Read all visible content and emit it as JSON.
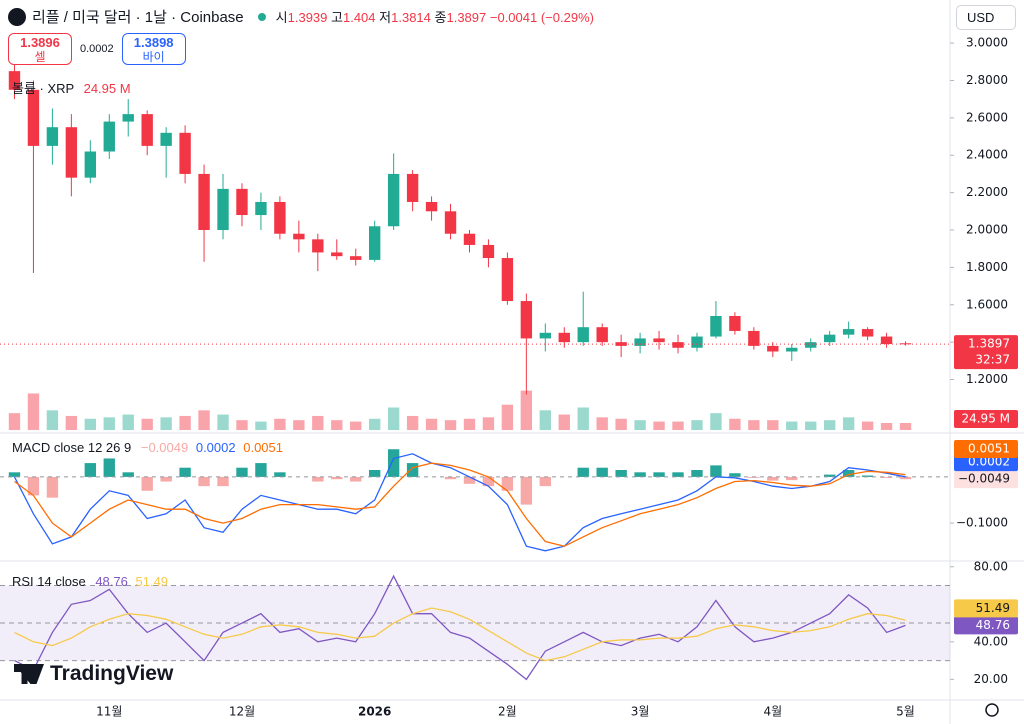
{
  "header": {
    "symbol": "리플 / 미국 달러 · 1날 · Coinbase",
    "open_label": "시",
    "high_label": "고",
    "low_label": "저",
    "close_label": "종",
    "change": "−0.0041 (−0.29%)",
    "currency": "USD",
    "sell_price": "1.3896",
    "sell_label": "셀",
    "spread": "0.0002",
    "buy_price": "1.3898",
    "buy_label": "바이",
    "countdown": "32:37",
    "logo": "TradingView"
  },
  "chart_data": [
    {
      "type": "candlestick",
      "categories": [
        null,
        null,
        null,
        null,
        null,
        "11월",
        null,
        null,
        null,
        null,
        null,
        null,
        "12월",
        null,
        null,
        null,
        null,
        null,
        null,
        "2026",
        null,
        null,
        null,
        null,
        null,
        null,
        "2월",
        null,
        null,
        null,
        null,
        null,
        null,
        "3월",
        null,
        null,
        null,
        null,
        null,
        null,
        "4월",
        null,
        null,
        null,
        null,
        null,
        null,
        "5월"
      ],
      "open": [
        2.85,
        2.75,
        2.45,
        2.55,
        2.28,
        2.42,
        2.58,
        2.62,
        2.45,
        2.52,
        2.3,
        2.0,
        2.22,
        2.08,
        2.15,
        1.98,
        1.95,
        1.88,
        1.86,
        1.84,
        2.02,
        2.3,
        2.15,
        2.1,
        1.98,
        1.92,
        1.85,
        1.62,
        1.42,
        1.45,
        1.4,
        1.48,
        1.4,
        1.38,
        1.42,
        1.4,
        1.37,
        1.43,
        1.54,
        1.46,
        1.38,
        1.35,
        1.37,
        1.4,
        1.44,
        1.47,
        1.43,
        1.3939
      ],
      "high": [
        2.98,
        2.8,
        2.65,
        2.62,
        2.48,
        2.62,
        2.7,
        2.64,
        2.55,
        2.56,
        2.35,
        2.3,
        2.25,
        2.2,
        2.18,
        2.05,
        1.98,
        1.95,
        1.9,
        2.05,
        2.41,
        2.32,
        2.18,
        2.14,
        2.0,
        1.95,
        1.88,
        1.66,
        1.5,
        1.48,
        1.67,
        1.5,
        1.44,
        1.45,
        1.46,
        1.44,
        1.45,
        1.62,
        1.56,
        1.48,
        1.4,
        1.39,
        1.42,
        1.46,
        1.51,
        1.48,
        1.45,
        1.404
      ],
      "low": [
        2.7,
        1.77,
        2.35,
        2.18,
        2.25,
        2.38,
        2.5,
        2.4,
        2.28,
        2.25,
        1.83,
        1.95,
        2.02,
        2.0,
        1.95,
        1.88,
        1.78,
        1.84,
        1.81,
        1.83,
        2.0,
        2.1,
        2.05,
        1.95,
        1.88,
        1.8,
        1.6,
        1.12,
        1.35,
        1.37,
        1.38,
        1.38,
        1.32,
        1.34,
        1.36,
        1.34,
        1.35,
        1.42,
        1.44,
        1.36,
        1.32,
        1.3,
        1.35,
        1.38,
        1.42,
        1.41,
        1.37,
        1.3814
      ],
      "close": [
        2.75,
        2.45,
        2.55,
        2.28,
        2.42,
        2.58,
        2.62,
        2.45,
        2.52,
        2.3,
        2.0,
        2.22,
        2.08,
        2.15,
        1.98,
        1.95,
        1.88,
        1.86,
        1.84,
        2.02,
        2.3,
        2.15,
        2.1,
        1.98,
        1.92,
        1.85,
        1.62,
        1.42,
        1.45,
        1.4,
        1.48,
        1.4,
        1.38,
        1.42,
        1.4,
        1.37,
        1.43,
        1.54,
        1.46,
        1.38,
        1.35,
        1.37,
        1.4,
        1.44,
        1.47,
        1.43,
        1.39,
        1.3897
      ],
      "up_color": "#22ab94",
      "down_color": "#f23645",
      "ylim": [
        0.93,
        3.07
      ],
      "yticks": [
        {
          "value": 3.0,
          "label": "3.0000"
        },
        {
          "value": 2.8,
          "label": "2.8000"
        },
        {
          "value": 2.6,
          "label": "2.6000"
        },
        {
          "value": 2.4,
          "label": "2.4000"
        },
        {
          "value": 2.2,
          "label": "2.2000"
        },
        {
          "value": 2.0,
          "label": "2.0000"
        },
        {
          "value": 1.8,
          "label": "1.8000"
        },
        {
          "value": 1.6,
          "label": "1.6000"
        },
        {
          "value": 1.4,
          "label": "1.4000"
        },
        {
          "value": 1.2,
          "label": "1.2000"
        }
      ],
      "grid": false
    },
    {
      "type": "bar",
      "name": "볼륨 · XRP",
      "values": [
        60,
        130,
        70,
        50,
        40,
        45,
        55,
        40,
        45,
        50,
        70,
        55,
        35,
        30,
        40,
        35,
        50,
        35,
        30,
        40,
        80,
        50,
        40,
        35,
        40,
        45,
        90,
        140,
        70,
        55,
        80,
        45,
        40,
        35,
        30,
        30,
        35,
        60,
        40,
        35,
        35,
        30,
        30,
        35,
        45,
        30,
        25,
        24.95
      ],
      "value_labels": [
        null,
        null,
        null,
        null,
        null,
        null,
        null,
        null,
        null,
        null,
        null,
        null,
        null,
        null,
        null,
        null,
        null,
        null,
        null,
        null,
        null,
        null,
        null,
        null,
        null,
        null,
        null,
        null,
        null,
        null,
        null,
        null,
        null,
        null,
        null,
        null,
        null,
        null,
        null,
        null,
        null,
        null,
        null,
        null,
        null,
        null,
        null,
        "24.95 M"
      ],
      "ylim": [
        0,
        160
      ]
    },
    {
      "type": "line",
      "name": "MACD close 12 26 9",
      "series": [
        {
          "type": "bar",
          "color": "#f7a9a7",
          "positive_color": "#26a69a",
          "values": [
            0.01,
            -0.04,
            -0.045,
            0.0,
            0.03,
            0.04,
            0.01,
            -0.03,
            -0.01,
            0.02,
            -0.02,
            -0.02,
            0.02,
            0.03,
            0.01,
            0.0,
            -0.01,
            -0.005,
            -0.01,
            0.015,
            0.06,
            0.03,
            0.0,
            -0.005,
            -0.015,
            -0.02,
            -0.03,
            -0.06,
            -0.02,
            0.0,
            0.02,
            0.02,
            0.015,
            0.01,
            0.01,
            0.01,
            0.015,
            0.025,
            0.008,
            -0.002,
            -0.008,
            -0.007,
            0.0,
            0.005,
            0.015,
            0.003,
            -0.002,
            -0.0049
          ],
          "value_labels": [
            null,
            null,
            null,
            null,
            null,
            null,
            null,
            null,
            null,
            null,
            null,
            null,
            null,
            null,
            null,
            null,
            null,
            null,
            null,
            null,
            null,
            null,
            null,
            null,
            null,
            null,
            null,
            null,
            null,
            null,
            null,
            null,
            null,
            null,
            null,
            null,
            null,
            null,
            null,
            null,
            null,
            null,
            null,
            null,
            null,
            null,
            null,
            "−0.0049"
          ]
        },
        {
          "type": "line",
          "color": "#2962ff",
          "values": [
            0.0,
            -0.08,
            -0.145,
            -0.13,
            -0.07,
            -0.03,
            -0.04,
            -0.09,
            -0.08,
            -0.05,
            -0.11,
            -0.12,
            -0.07,
            -0.04,
            -0.05,
            -0.06,
            -0.07,
            -0.07,
            -0.08,
            -0.05,
            0.04,
            0.05,
            0.03,
            0.02,
            0.0,
            -0.02,
            -0.06,
            -0.15,
            -0.16,
            -0.15,
            -0.11,
            -0.09,
            -0.08,
            -0.07,
            -0.06,
            -0.05,
            -0.03,
            0.0,
            -0.002,
            -0.01,
            -0.02,
            -0.025,
            -0.02,
            -0.01,
            0.02,
            0.015,
            0.008,
            0.0002
          ]
        },
        {
          "type": "line",
          "color": "#ff6d00",
          "values": [
            -0.01,
            -0.04,
            -0.1,
            -0.13,
            -0.1,
            -0.07,
            -0.05,
            -0.06,
            -0.07,
            -0.07,
            -0.09,
            -0.1,
            -0.09,
            -0.07,
            -0.06,
            -0.06,
            -0.06,
            -0.065,
            -0.07,
            -0.065,
            -0.02,
            0.02,
            0.03,
            0.025,
            0.015,
            0.0,
            -0.03,
            -0.09,
            -0.14,
            -0.15,
            -0.13,
            -0.11,
            -0.095,
            -0.08,
            -0.07,
            -0.06,
            -0.045,
            -0.025,
            -0.01,
            -0.008,
            -0.012,
            -0.018,
            -0.02,
            -0.015,
            0.005,
            0.012,
            0.01,
            0.0051
          ]
        }
      ],
      "ylim": [
        -0.18,
        0.08
      ],
      "yticks": [
        {
          "value": -0.1,
          "label": "−0.1000"
        }
      ]
    },
    {
      "type": "line",
      "name": "RSI 14 close",
      "series": [
        {
          "type": "line",
          "color": "#7e57c2",
          "values": [
            30,
            25,
            45,
            60,
            62,
            68,
            55,
            45,
            50,
            40,
            30,
            45,
            50,
            55,
            45,
            47,
            40,
            42,
            40,
            55,
            75,
            55,
            55,
            45,
            42,
            35,
            28,
            20,
            35,
            40,
            45,
            40,
            38,
            42,
            44,
            40,
            48,
            62,
            48,
            40,
            42,
            45,
            50,
            55,
            65,
            58,
            45,
            48.76
          ]
        },
        {
          "type": "line",
          "color": "#f7c948",
          "values": [
            45,
            40,
            38,
            42,
            48,
            52,
            55,
            54,
            52,
            48,
            44,
            42,
            44,
            48,
            49,
            48,
            45,
            44,
            42,
            43,
            50,
            55,
            58,
            56,
            52,
            46,
            40,
            34,
            30,
            32,
            36,
            40,
            41,
            41,
            42,
            42,
            43,
            47,
            49,
            48,
            46,
            45,
            46,
            48,
            52,
            55,
            54,
            51.49
          ]
        }
      ],
      "bands": [
        30,
        50,
        70
      ],
      "band_color": "#7e57c2",
      "ylim": [
        9,
        82
      ],
      "yticks": [
        {
          "value": 80,
          "label": "80.00"
        },
        {
          "value": 40,
          "label": "40.00"
        },
        {
          "value": 20,
          "label": "20.00"
        }
      ]
    }
  ]
}
